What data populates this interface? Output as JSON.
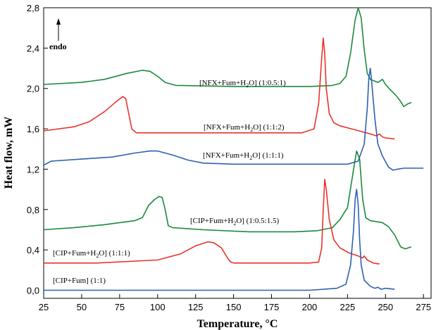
{
  "chart_data": {
    "type": "line",
    "xlabel": "Temperature, °C",
    "ylabel": "Heat flow, mW",
    "xlim": [
      25,
      280
    ],
    "ylim": [
      -0.08,
      2.8
    ],
    "xticks": [
      25,
      50,
      75,
      100,
      125,
      150,
      175,
      200,
      225,
      250,
      275
    ],
    "yticks": [
      0.0,
      0.4,
      0.8,
      1.2,
      1.6,
      2.0,
      2.4,
      2.8
    ],
    "ytick_labels": [
      "0,0",
      "0,4",
      "0,8",
      "1,2",
      "1,6",
      "2,0",
      "2,4",
      "2,8"
    ],
    "annotation": "endo",
    "grid": false,
    "series": [
      {
        "name": "[NFX+Fum+H2O] (1:0.5:1)",
        "color": "#1a8a3a",
        "points": [
          [
            25,
            2.04
          ],
          [
            50,
            2.06
          ],
          [
            65,
            2.09
          ],
          [
            80,
            2.15
          ],
          [
            90,
            2.18
          ],
          [
            95,
            2.17
          ],
          [
            100,
            2.12
          ],
          [
            105,
            2.06
          ],
          [
            112,
            2.03
          ],
          [
            150,
            2.02
          ],
          [
            200,
            2.02
          ],
          [
            215,
            2.03
          ],
          [
            220,
            2.05
          ],
          [
            224,
            2.12
          ],
          [
            227,
            2.35
          ],
          [
            230,
            2.68
          ],
          [
            232,
            2.8
          ],
          [
            234,
            2.7
          ],
          [
            236,
            2.38
          ],
          [
            238,
            2.15
          ],
          [
            240,
            2.09
          ],
          [
            245,
            2.06
          ],
          [
            248,
            2.09
          ],
          [
            250,
            2.04
          ],
          [
            253,
            1.99
          ],
          [
            257,
            1.93
          ],
          [
            260,
            1.87
          ],
          [
            262,
            1.82
          ],
          [
            265,
            1.85
          ],
          [
            267,
            1.86
          ]
        ]
      },
      {
        "name": "[NFX+Fum+H2O] (1:1:2)",
        "color": "#e8332a",
        "points": [
          [
            25,
            1.58
          ],
          [
            45,
            1.62
          ],
          [
            55,
            1.67
          ],
          [
            65,
            1.77
          ],
          [
            72,
            1.86
          ],
          [
            77,
            1.92
          ],
          [
            79,
            1.9
          ],
          [
            81,
            1.75
          ],
          [
            83,
            1.6
          ],
          [
            86,
            1.56
          ],
          [
            110,
            1.56
          ],
          [
            150,
            1.56
          ],
          [
            195,
            1.56
          ],
          [
            203,
            1.6
          ],
          [
            206,
            1.85
          ],
          [
            208,
            2.3
          ],
          [
            209,
            2.5
          ],
          [
            210,
            2.35
          ],
          [
            211,
            2.0
          ],
          [
            213,
            1.75
          ],
          [
            216,
            1.66
          ],
          [
            220,
            1.63
          ],
          [
            230,
            1.59
          ],
          [
            240,
            1.55
          ],
          [
            244,
            1.53
          ],
          [
            246,
            1.55
          ],
          [
            248,
            1.52
          ],
          [
            250,
            1.51
          ],
          [
            256,
            1.5
          ]
        ]
      },
      {
        "name": "[NFX+Fum+H2O] (1:1:1)",
        "color": "#2f5fb5",
        "points": [
          [
            25,
            1.24
          ],
          [
            30,
            1.28
          ],
          [
            50,
            1.3
          ],
          [
            70,
            1.32
          ],
          [
            85,
            1.36
          ],
          [
            95,
            1.38
          ],
          [
            100,
            1.38
          ],
          [
            110,
            1.34
          ],
          [
            120,
            1.29
          ],
          [
            130,
            1.26
          ],
          [
            150,
            1.25
          ],
          [
            200,
            1.25
          ],
          [
            225,
            1.25
          ],
          [
            232,
            1.28
          ],
          [
            236,
            1.45
          ],
          [
            238,
            1.8
          ],
          [
            239,
            2.1
          ],
          [
            240,
            2.2
          ],
          [
            241,
            2.05
          ],
          [
            243,
            1.7
          ],
          [
            245,
            1.45
          ],
          [
            248,
            1.33
          ],
          [
            252,
            1.22
          ],
          [
            255,
            1.19
          ],
          [
            258,
            1.2
          ],
          [
            262,
            1.21
          ],
          [
            270,
            1.21
          ],
          [
            275,
            1.21
          ]
        ]
      },
      {
        "name": "[CIP+Fum+H2O] (1:0.5:1.5)",
        "color": "#1a8a3a",
        "points": [
          [
            25,
            0.6
          ],
          [
            45,
            0.62
          ],
          [
            65,
            0.65
          ],
          [
            85,
            0.69
          ],
          [
            90,
            0.72
          ],
          [
            94,
            0.84
          ],
          [
            98,
            0.9
          ],
          [
            101,
            0.93
          ],
          [
            103,
            0.92
          ],
          [
            105,
            0.8
          ],
          [
            107,
            0.64
          ],
          [
            110,
            0.62
          ],
          [
            130,
            0.6
          ],
          [
            160,
            0.58
          ],
          [
            190,
            0.58
          ],
          [
            205,
            0.59
          ],
          [
            215,
            0.62
          ],
          [
            220,
            0.7
          ],
          [
            225,
            0.82
          ],
          [
            229,
            1.2
          ],
          [
            231,
            1.38
          ],
          [
            233,
            1.3
          ],
          [
            235,
            0.9
          ],
          [
            237,
            0.72
          ],
          [
            240,
            0.69
          ],
          [
            248,
            0.67
          ],
          [
            252,
            0.63
          ],
          [
            256,
            0.55
          ],
          [
            260,
            0.43
          ],
          [
            263,
            0.41
          ],
          [
            265,
            0.42
          ],
          [
            267,
            0.43
          ]
        ]
      },
      {
        "name": "[CIP+Fum+H2O] (1:1:1)",
        "color": "#e8332a",
        "points": [
          [
            25,
            0.27
          ],
          [
            60,
            0.27
          ],
          [
            100,
            0.3
          ],
          [
            115,
            0.36
          ],
          [
            125,
            0.44
          ],
          [
            133,
            0.48
          ],
          [
            137,
            0.47
          ],
          [
            142,
            0.42
          ],
          [
            146,
            0.32
          ],
          [
            148,
            0.28
          ],
          [
            150,
            0.27
          ],
          [
            200,
            0.27
          ],
          [
            206,
            0.28
          ],
          [
            208,
            0.42
          ],
          [
            209,
            0.8
          ],
          [
            210,
            1.1
          ],
          [
            211,
            1.0
          ],
          [
            213,
            0.7
          ],
          [
            216,
            0.5
          ],
          [
            220,
            0.42
          ],
          [
            226,
            0.37
          ],
          [
            232,
            0.34
          ],
          [
            235,
            0.32
          ],
          [
            236,
            0.34
          ],
          [
            238,
            0.3
          ],
          [
            242,
            0.27
          ],
          [
            246,
            0.26
          ]
        ]
      },
      {
        "name": "[CIP+Fum] (1:1)",
        "color": "#2f5fb5",
        "points": [
          [
            25,
            0.0
          ],
          [
            100,
            0.0
          ],
          [
            200,
            0.0
          ],
          [
            218,
            0.02
          ],
          [
            224,
            0.06
          ],
          [
            227,
            0.25
          ],
          [
            229,
            0.6
          ],
          [
            230,
            0.9
          ],
          [
            231,
            1.0
          ],
          [
            232,
            0.85
          ],
          [
            233,
            0.5
          ],
          [
            234,
            0.25
          ],
          [
            236,
            0.1
          ],
          [
            240,
            0.04
          ],
          [
            243,
            0.02
          ],
          [
            245,
            0.03
          ],
          [
            247,
            0.01
          ],
          [
            250,
            0.02
          ],
          [
            256,
            0.01
          ]
        ]
      }
    ]
  }
}
